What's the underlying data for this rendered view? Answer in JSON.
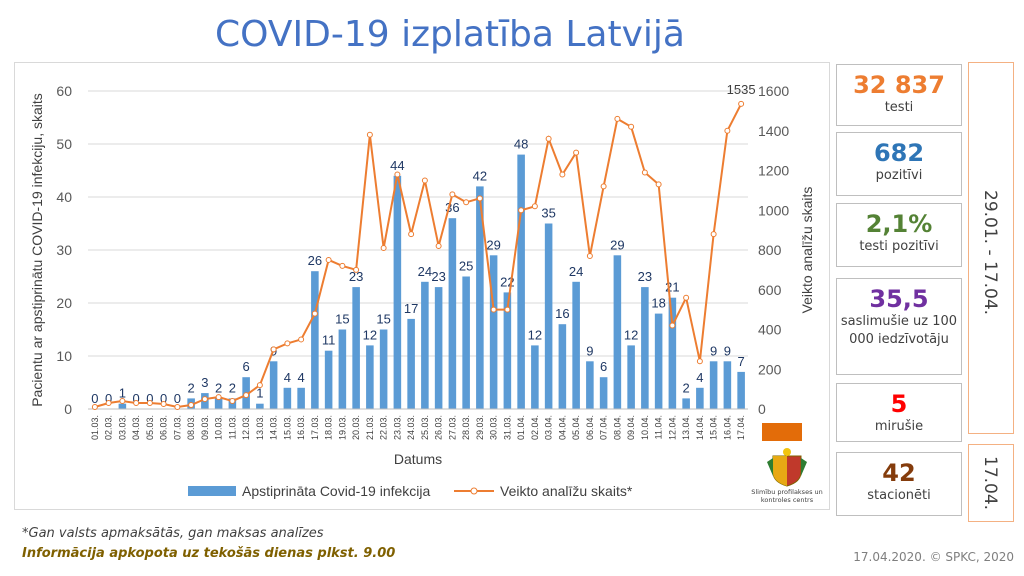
{
  "title": "COVID-19 izplatība Latvijā",
  "chart_data": {
    "type": "bar+line",
    "x": [
      "01.03.",
      "02.03.",
      "03.03.",
      "04.03.",
      "05.03.",
      "06.03.",
      "07.03.",
      "08.03.",
      "09.03.",
      "10.03.",
      "11.03.",
      "12.03.",
      "13.03.",
      "14.03.",
      "15.03.",
      "16.03.",
      "17.03.",
      "18.03.",
      "19.03.",
      "20.03.",
      "21.03.",
      "22.03.",
      "23.03.",
      "24.03.",
      "25.03.",
      "26.03.",
      "27.03.",
      "28.03.",
      "29.03.",
      "30.03.",
      "31.03.",
      "01.04.",
      "02.04.",
      "03.04.",
      "04.04.",
      "05.04.",
      "06.04.",
      "07.04.",
      "08.04.",
      "09.04.",
      "10.04.",
      "11.04.",
      "12.04.",
      "13.04.",
      "14.04.",
      "15.04.",
      "16.04.",
      "17.04."
    ],
    "xlabel": "Datums",
    "series": [
      {
        "name": "Apstiprināta Covid-19 infekcija",
        "type": "bar",
        "axis": "left",
        "color": "#5b9bd5",
        "values": [
          0,
          0,
          1,
          0,
          0,
          0,
          0,
          2,
          3,
          2,
          2,
          6,
          1,
          9,
          4,
          4,
          26,
          11,
          15,
          23,
          12,
          15,
          44,
          17,
          24,
          23,
          36,
          25,
          42,
          29,
          22,
          48,
          12,
          35,
          16,
          24,
          9,
          6,
          29,
          12,
          23,
          18,
          21,
          2,
          4,
          9,
          9,
          7
        ]
      },
      {
        "name": "Veikto analīžu skaits*",
        "type": "line",
        "axis": "right",
        "color": "#ed7d31",
        "values": [
          10,
          30,
          40,
          30,
          30,
          25,
          10,
          20,
          50,
          60,
          40,
          70,
          120,
          300,
          330,
          350,
          480,
          750,
          720,
          700,
          1380,
          810,
          1180,
          880,
          1150,
          820,
          1080,
          1040,
          1060,
          500,
          500,
          1000,
          1020,
          1360,
          1180,
          1290,
          770,
          1120,
          1460,
          1420,
          1190,
          1130,
          420,
          560,
          240,
          880,
          1400,
          1535
        ]
      }
    ],
    "ylabel_left": "Pacientu ar apstiprinātu COVID-19 infekciju, skaits",
    "ylabel_right": "Veikto analīžu skaits",
    "ylim_left": [
      0,
      60
    ],
    "yticks_left": [
      "0",
      "10",
      "20",
      "30",
      "40",
      "50",
      "60"
    ],
    "ylim_right": [
      0,
      1600
    ],
    "yticks_right": [
      "0",
      "200",
      "400",
      "600",
      "800",
      "1000",
      "1200",
      "1400",
      "1600"
    ],
    "last_line_label": "1535",
    "legend_position": "bottom",
    "grid": true
  },
  "stats": [
    {
      "value": "32 837",
      "label": "testi",
      "color": "#ed7d31"
    },
    {
      "value": "682",
      "label": "pozitīvi",
      "color": "#2e75b6"
    },
    {
      "value": "2,1%",
      "label": "testi pozitīvi",
      "color": "#548235"
    },
    {
      "value": "35,5",
      "label": "saslimušie uz 100 000 iedzīvotāju",
      "color": "#7030a0"
    },
    {
      "value": "5",
      "label": "mirušie",
      "color": "#ff0000"
    },
    {
      "value": "42",
      "label": "stacionēti",
      "color": "#843c0c"
    }
  ],
  "period_label": "29.01. - 17.04.",
  "date_label": "17.04.",
  "logo_text": "Slimību profilakses un kontroles centrs",
  "footnote": "*Gan valsts apmaksātās, gan maksas analīzes",
  "info_note": "Informācija apkopota uz tekošās dienas plkst. 9.00",
  "credit": "17.04.2020. © SPKC, 2020"
}
